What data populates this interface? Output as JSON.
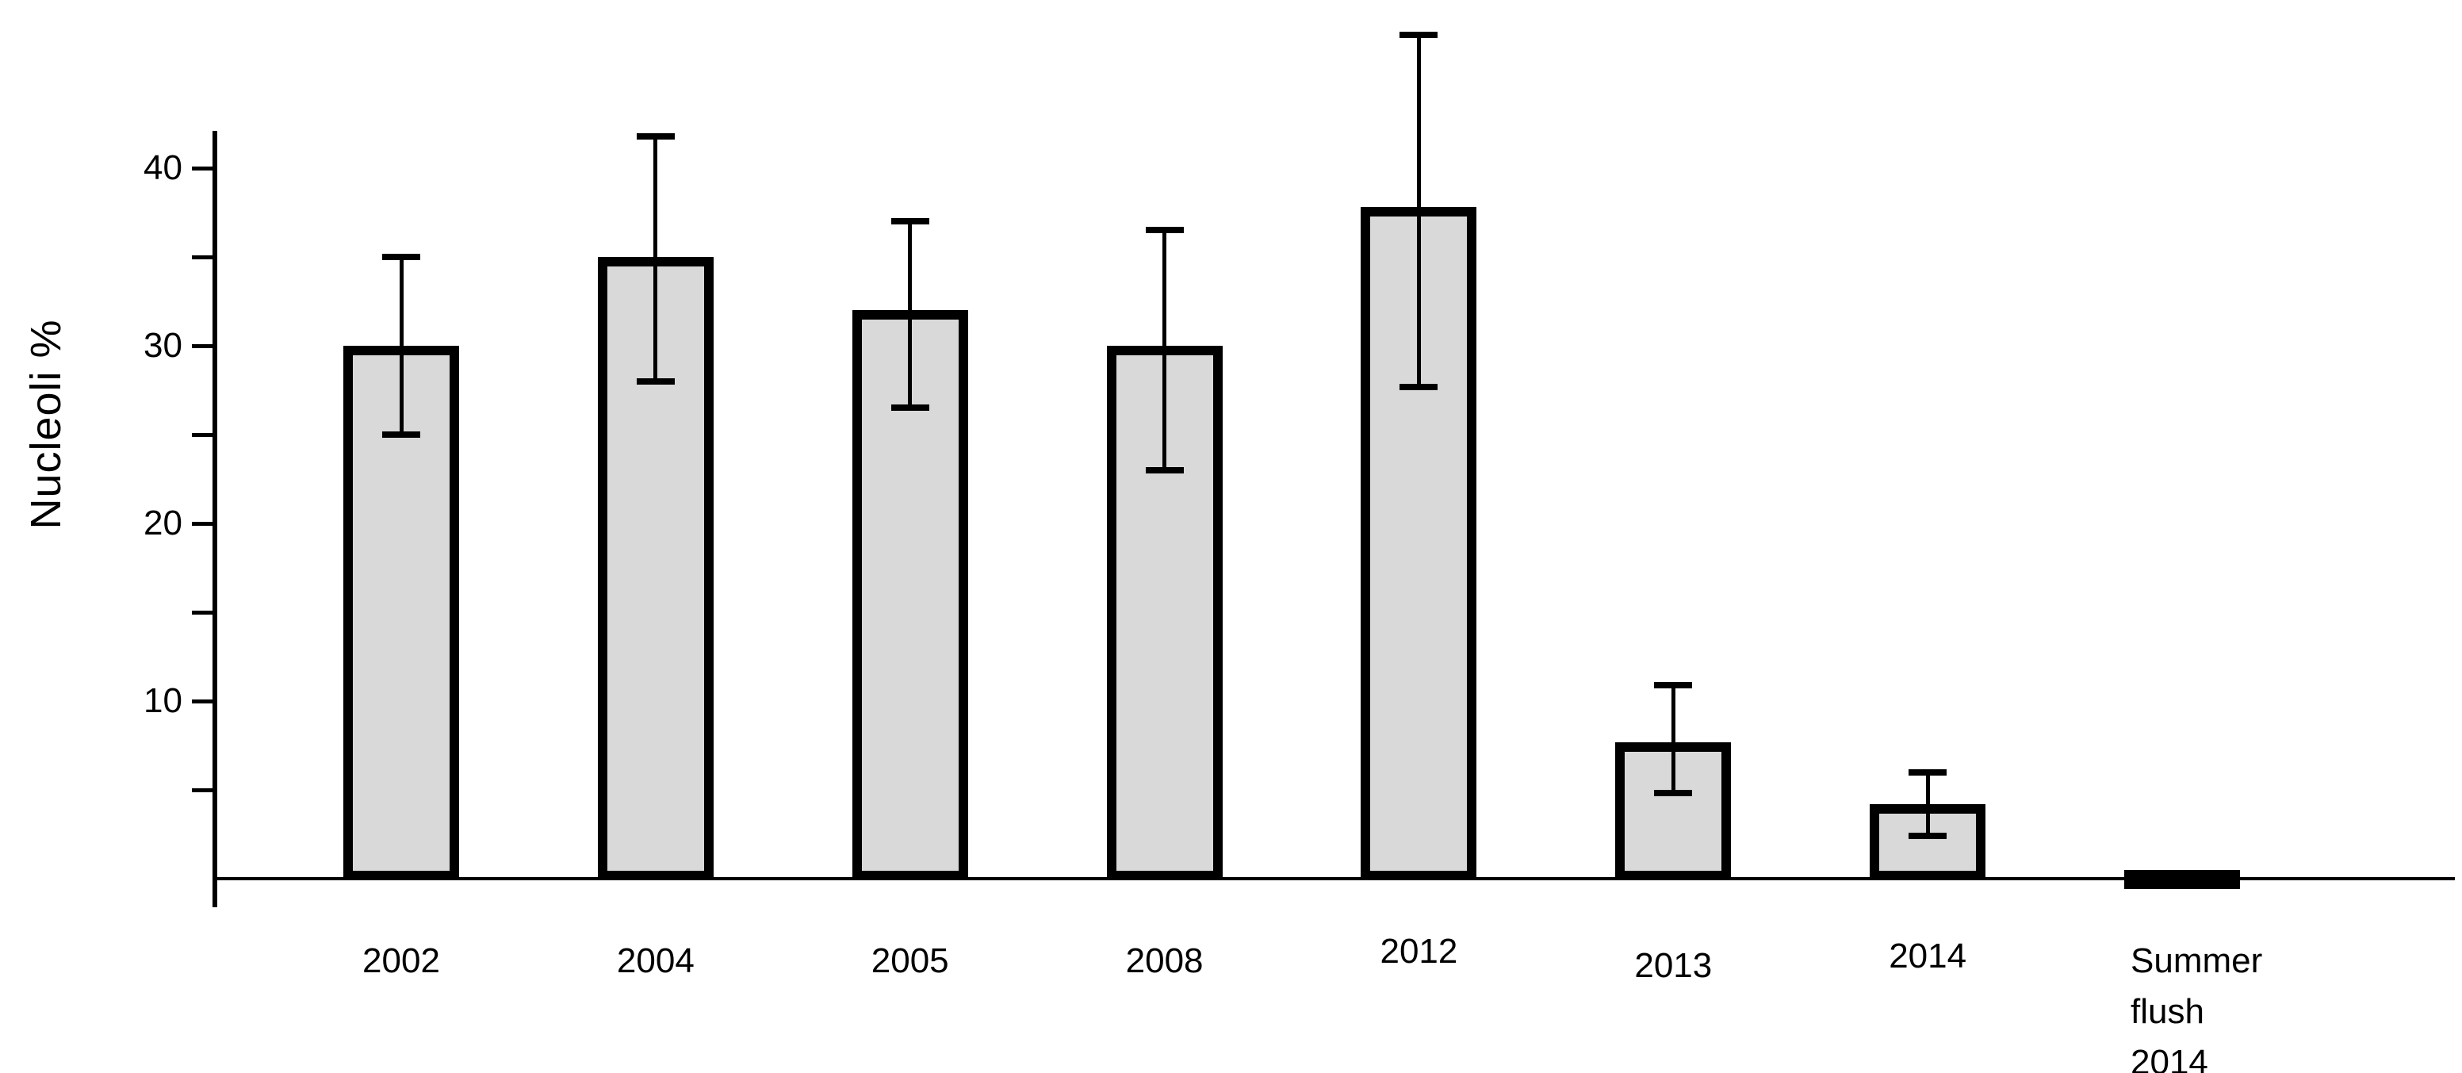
{
  "chart_data": {
    "type": "bar",
    "title": "",
    "xlabel": "",
    "ylabel": "Nucleoli %",
    "categories": [
      "2002",
      "2004",
      "2005",
      "2008",
      "2012",
      "2013",
      "2014",
      "Summer flush 2014"
    ],
    "values": [
      30,
      35,
      32,
      30,
      37.8,
      7.7,
      4.2,
      0.5
    ],
    "error_low": [
      25,
      28,
      26.5,
      23,
      27.7,
      4.8,
      2.4,
      null
    ],
    "error_high": [
      35,
      41.8,
      37,
      36.5,
      47.5,
      10.9,
      6,
      null
    ],
    "y_tick_labels": [
      10,
      20,
      30,
      40
    ],
    "y_minor_ticks": [
      5,
      15,
      25,
      35
    ],
    "ylim": [
      0,
      42
    ],
    "grid": false,
    "legend": null,
    "colors": {
      "background": "#ffffff",
      "bar_fill": "#d9d9d9",
      "bar_border": "#000000",
      "axis": "#000000",
      "text": "#000000"
    }
  }
}
